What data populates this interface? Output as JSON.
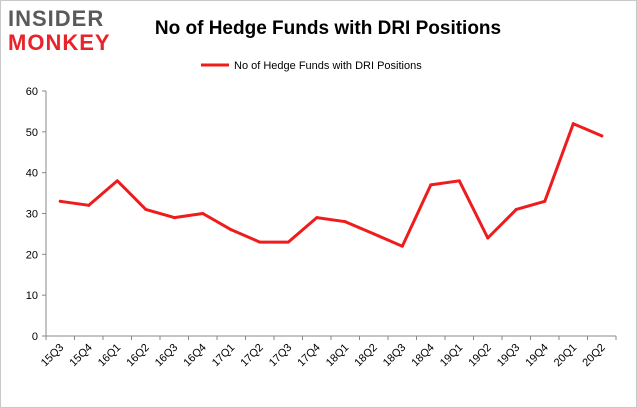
{
  "logo": {
    "line1": "INSIDER",
    "line2": "MONKEY"
  },
  "colors": {
    "series": "#ee1c1c",
    "logo_top": "#5a5a5a",
    "logo_bottom": "#e8232a",
    "axis": "#888888",
    "grid": "#888888"
  },
  "chart_data": {
    "type": "line",
    "title": "No of Hedge Funds with DRI Positions",
    "legend": {
      "position": "top",
      "entries": [
        "No of Hedge Funds with DRI Positions"
      ]
    },
    "xlabel": "",
    "ylabel": "",
    "ylim": [
      0,
      60
    ],
    "yticks": [
      0,
      10,
      20,
      30,
      40,
      50,
      60
    ],
    "grid": false,
    "categories": [
      "15Q3",
      "15Q4",
      "16Q1",
      "16Q2",
      "16Q3",
      "16Q4",
      "17Q1",
      "17Q2",
      "17Q3",
      "17Q4",
      "18Q1",
      "18Q2",
      "18Q3",
      "18Q4",
      "19Q1",
      "19Q2",
      "19Q3",
      "19Q4",
      "20Q1",
      "20Q2"
    ],
    "series": [
      {
        "name": "No of Hedge Funds with DRI Positions",
        "values": [
          33,
          32,
          38,
          31,
          29,
          30,
          26,
          23,
          23,
          29,
          28,
          25,
          22,
          37,
          38,
          24,
          31,
          33,
          52,
          49
        ]
      }
    ]
  }
}
